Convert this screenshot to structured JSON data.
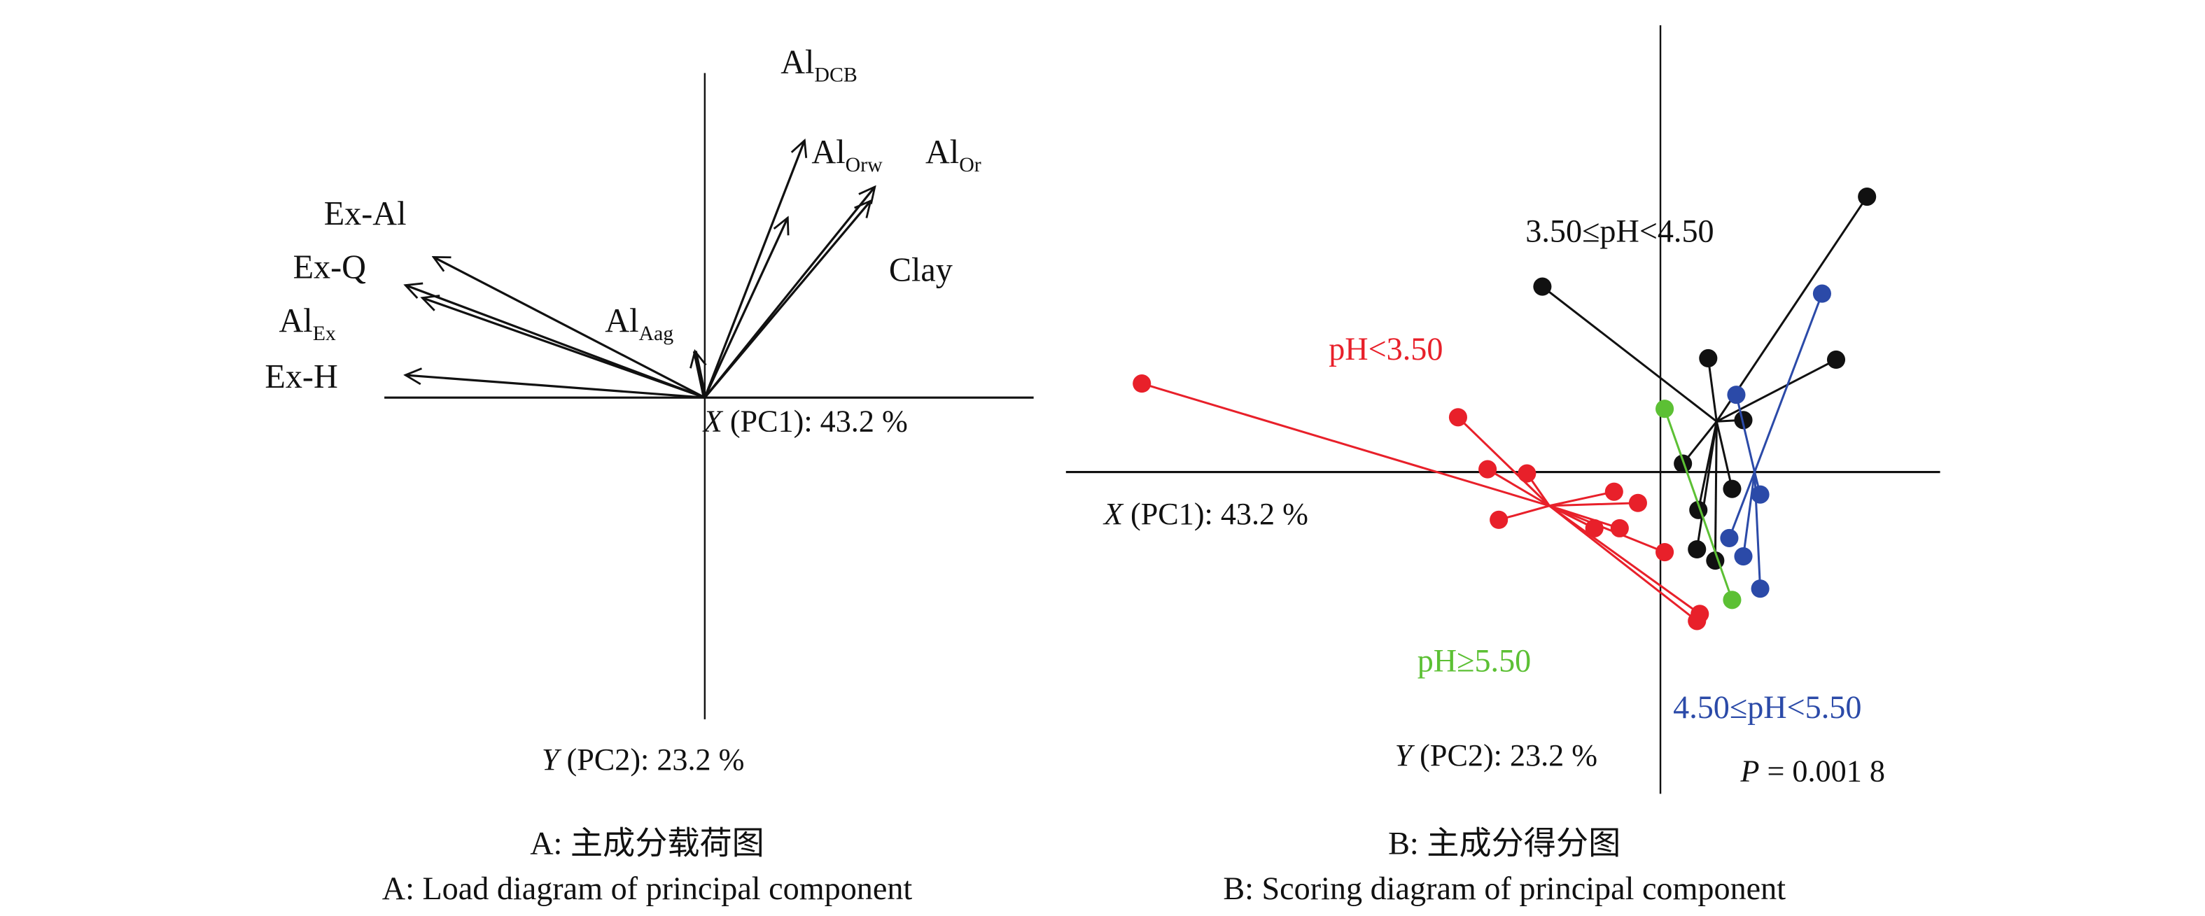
{
  "chart_data": [
    {
      "type": "biplot-loadings",
      "panel": "A",
      "xlabel": {
        "var": "X",
        "text": " (PC1): 43.2 %"
      },
      "ylabel": {
        "var": "Y",
        "text": " (PC2): 23.2 %"
      },
      "caption_cn": "A: 主成分载荷图",
      "caption_en": "A: Load diagram of principal component",
      "loadings": [
        {
          "name": "Ex-Al",
          "sub": "",
          "x": -0.965,
          "y": 0.5
        },
        {
          "name": "Ex-Q",
          "sub": "",
          "x": -1.065,
          "y": 0.4
        },
        {
          "name": "Al",
          "sub": "Ex",
          "x": -1.005,
          "y": 0.355
        },
        {
          "name": "Ex-H",
          "sub": "",
          "x": -1.065,
          "y": 0.08
        },
        {
          "name": "Al",
          "sub": "Aag",
          "x": -0.035,
          "y": 0.165
        },
        {
          "name": "Al",
          "sub": "DCB",
          "x": 0.295,
          "y": 0.64
        },
        {
          "name": "Al",
          "sub": "Orw",
          "x": 0.355,
          "y": 0.915
        },
        {
          "name": "Al",
          "sub": "Or",
          "x": 0.605,
          "y": 0.75
        },
        {
          "name": "Clay",
          "sub": "",
          "x": 0.59,
          "y": 0.7
        }
      ]
    },
    {
      "type": "scatter",
      "panel": "B",
      "xlabel": {
        "var": "X",
        "text": " (PC1): 43.2 %"
      },
      "ylabel": {
        "var": "Y",
        "text": " (PC2): 23.2 %"
      },
      "annotation": {
        "var": "P",
        "text": " = 0.001 8"
      },
      "caption_cn": "B: 主成分得分图",
      "caption_en": "B: Scoring diagram of principal component",
      "series": [
        {
          "name": "pH<3.50",
          "color": "#e8202a",
          "centroid": [
            -0.79,
            -0.24
          ],
          "points": [
            [
              -3.69,
              0.63
            ],
            [
              -1.44,
              0.39
            ],
            [
              -1.23,
              0.02
            ],
            [
              -0.95,
              -0.01
            ],
            [
              -0.33,
              -0.14
            ],
            [
              -0.16,
              -0.22
            ],
            [
              -1.15,
              -0.34
            ],
            [
              -0.47,
              -0.4
            ],
            [
              -0.29,
              -0.4
            ],
            [
              0.03,
              -0.57
            ],
            [
              0.28,
              -1.01
            ],
            [
              0.26,
              -1.06
            ]
          ]
        },
        {
          "name": "3.50≤pH<4.50",
          "color": "#111111",
          "centroid": [
            0.4,
            0.36
          ],
          "points": [
            [
              1.47,
              1.96
            ],
            [
              -0.84,
              1.32
            ],
            [
              0.34,
              0.81
            ],
            [
              1.25,
              0.8
            ],
            [
              0.59,
              0.37
            ],
            [
              0.16,
              0.06
            ],
            [
              0.51,
              -0.12
            ],
            [
              0.27,
              -0.27
            ],
            [
              0.26,
              -0.55
            ],
            [
              0.39,
              -0.63
            ]
          ]
        },
        {
          "name": "4.50≤pH<5.50",
          "color": "#2b4aa8",
          "centroid": [
            0.67,
            0.0
          ],
          "points": [
            [
              1.15,
              1.27
            ],
            [
              0.54,
              0.55
            ],
            [
              0.71,
              -0.16
            ],
            [
              0.49,
              -0.47
            ],
            [
              0.59,
              -0.6
            ],
            [
              0.71,
              -0.83
            ]
          ]
        },
        {
          "name": "pH≥5.50",
          "color": "#5cc034",
          "centroid": [
            0.27,
            -0.23
          ],
          "points": [
            [
              0.03,
              0.45
            ],
            [
              0.51,
              -0.91
            ]
          ]
        }
      ]
    }
  ]
}
